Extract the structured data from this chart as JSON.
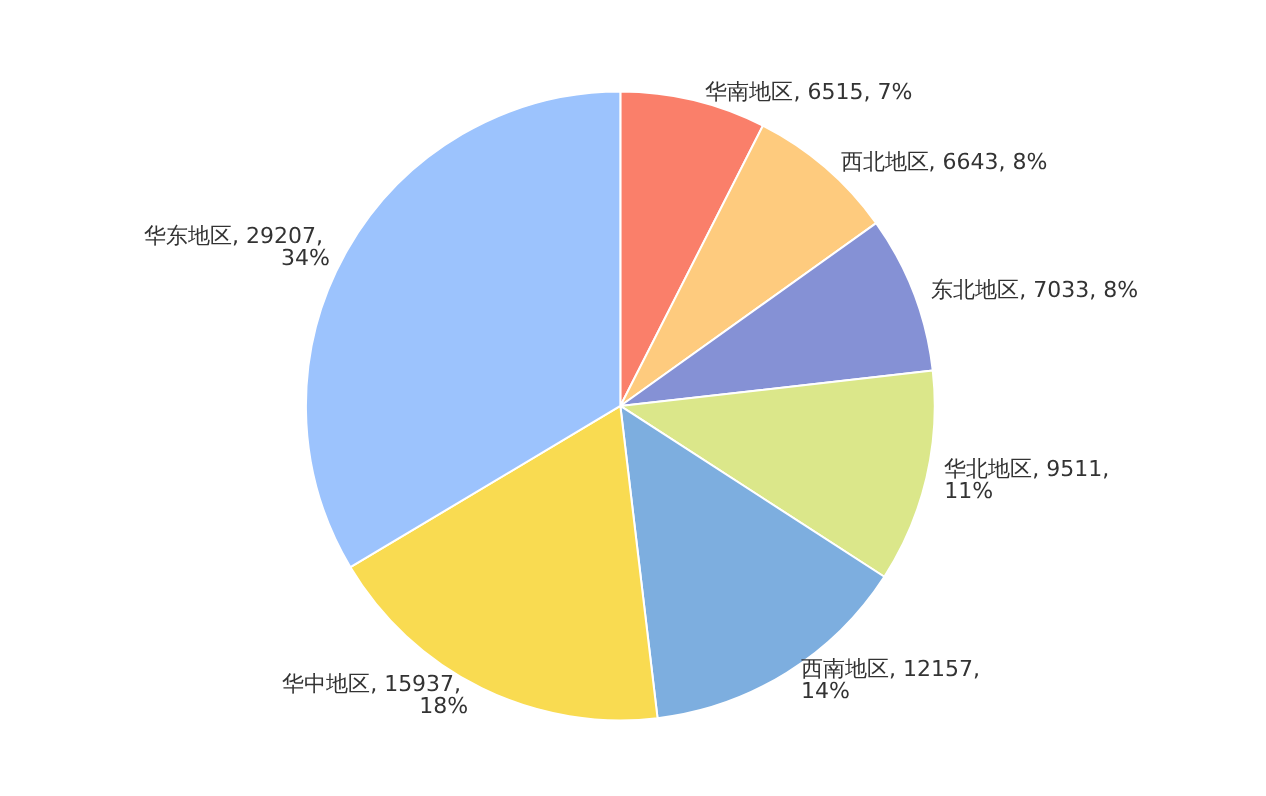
{
  "chart_data": {
    "type": "pie",
    "categories": [
      "华南地区",
      "西北地区",
      "东北地区",
      "华北地区",
      "西南地区",
      "华中地区",
      "华东地区"
    ],
    "values": [
      6515,
      6643,
      7033,
      9511,
      12157,
      15937,
      29207
    ],
    "value_labels": [
      "6515, 7%",
      "6643, 8%",
      "7033, 8%",
      "9511, 11%",
      "12157, 14%",
      "15937, 18%",
      "29207, 34%"
    ],
    "colors": [
      "#fa7f6a",
      "#fecb7e",
      "#8591d5",
      "#dbe78a",
      "#7daedf",
      "#f9db51",
      "#9cc3fd"
    ],
    "legend": false
  }
}
